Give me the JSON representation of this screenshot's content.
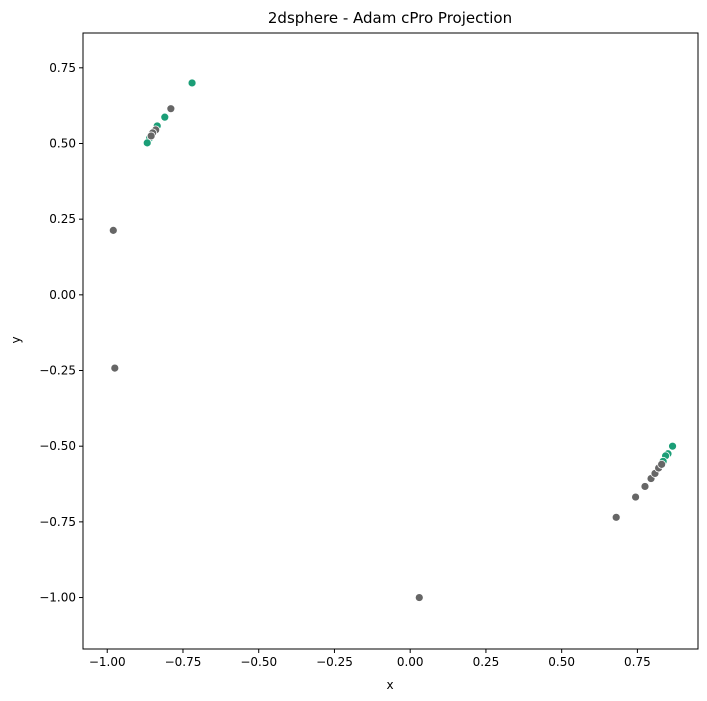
{
  "chart_data": {
    "type": "scatter",
    "title": "2dsphere - Adam cPro Projection",
    "xlabel": "x",
    "ylabel": "y",
    "xlim": [
      -1.08,
      0.95
    ],
    "ylim": [
      -1.17,
      0.865
    ],
    "xticks": [
      -1.0,
      -0.75,
      -0.5,
      -0.25,
      0.0,
      0.25,
      0.5,
      0.75
    ],
    "xtick_labels": [
      "−1.00",
      "−0.75",
      "−0.50",
      "−0.25",
      "0.00",
      "0.25",
      "0.50",
      "0.75"
    ],
    "yticks": [
      -1.0,
      -0.75,
      -0.5,
      -0.25,
      0.0,
      0.25,
      0.5,
      0.75
    ],
    "ytick_labels": [
      "−1.00",
      "−0.75",
      "−0.50",
      "−0.25",
      "0.00",
      "0.25",
      "0.50",
      "0.75"
    ],
    "grid": false,
    "colors": {
      "green": "#1b9e77",
      "gray": "#666666"
    },
    "series": [
      {
        "color": "#1b9e77",
        "points": [
          {
            "x": -0.72,
            "y": 0.7
          },
          {
            "x": -0.81,
            "y": 0.587
          },
          {
            "x": -0.835,
            "y": 0.558
          },
          {
            "x": -0.86,
            "y": 0.518
          },
          {
            "x": -0.868,
            "y": 0.502
          },
          {
            "x": 0.866,
            "y": -0.5
          },
          {
            "x": 0.851,
            "y": -0.525
          },
          {
            "x": 0.843,
            "y": -0.532
          },
          {
            "x": 0.835,
            "y": -0.55
          }
        ]
      },
      {
        "color": "#666666",
        "points": [
          {
            "x": -0.79,
            "y": 0.615
          },
          {
            "x": -0.84,
            "y": 0.545
          },
          {
            "x": -0.85,
            "y": 0.535
          },
          {
            "x": -0.855,
            "y": 0.525
          },
          {
            "x": -0.98,
            "y": 0.213
          },
          {
            "x": -0.975,
            "y": -0.242
          },
          {
            "x": 0.03,
            "y": -1.0
          },
          {
            "x": 0.68,
            "y": -0.735
          },
          {
            "x": 0.744,
            "y": -0.668
          },
          {
            "x": 0.775,
            "y": -0.633
          },
          {
            "x": 0.795,
            "y": -0.607
          },
          {
            "x": 0.808,
            "y": -0.59
          },
          {
            "x": 0.82,
            "y": -0.572
          },
          {
            "x": 0.83,
            "y": -0.56
          }
        ]
      }
    ]
  }
}
